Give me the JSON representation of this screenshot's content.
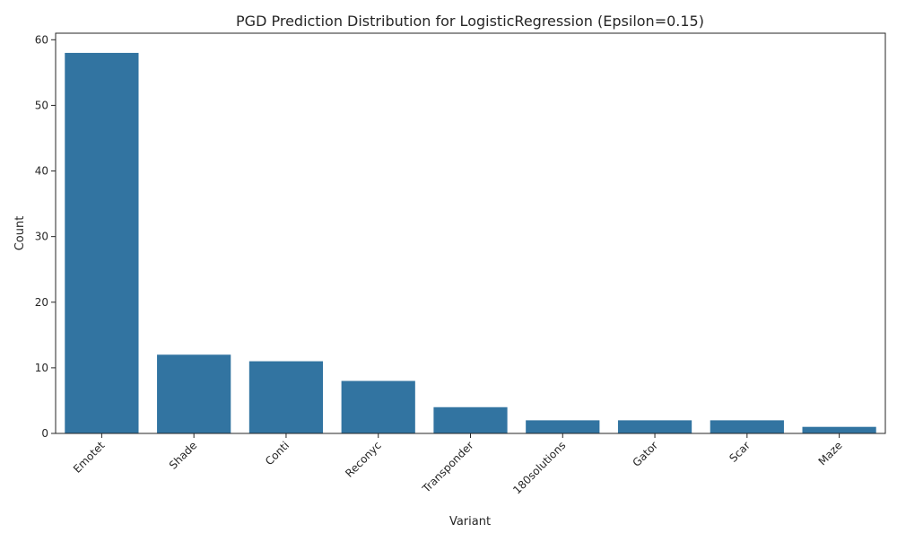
{
  "chart_data": {
    "type": "bar",
    "title": "PGD Prediction Distribution for LogisticRegression (Epsilon=0.15)",
    "xlabel": "Variant",
    "ylabel": "Count",
    "categories": [
      "Emotet",
      "Shade",
      "Conti",
      "Reconyc",
      "Transponder",
      "180solutions",
      "Gator",
      "Scar",
      "Maze"
    ],
    "values": [
      58,
      12,
      11,
      8,
      4,
      2,
      2,
      2,
      1
    ],
    "ylim": [
      0,
      61
    ],
    "yticks": [
      0,
      10,
      20,
      30,
      40,
      50,
      60
    ],
    "bar_color": "#3274a1",
    "grid": false,
    "legend": "none"
  }
}
